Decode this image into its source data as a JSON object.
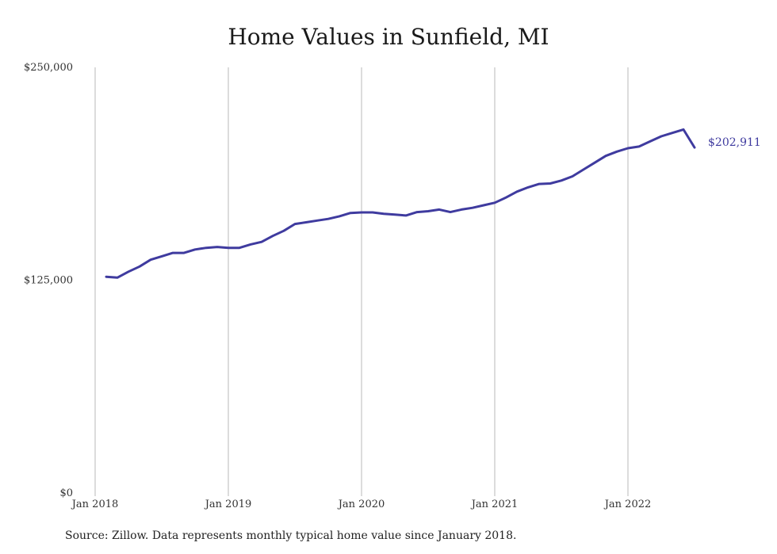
{
  "chart_data": {
    "type": "line",
    "title": "Home Values in Sunfield, MI",
    "source": "Source: Zillow. Data represents monthly typical home value since January 2018.",
    "xlabel": "",
    "ylabel": "",
    "ylim": [
      0,
      250000
    ],
    "y_ticks": [
      {
        "value": 0,
        "label": "$0"
      },
      {
        "value": 125000,
        "label": "$125,000"
      },
      {
        "value": 250000,
        "label": "$250,000"
      }
    ],
    "x_ticks": [
      {
        "value": "2018-01",
        "label": "Jan 2018"
      },
      {
        "value": "2019-01",
        "label": "Jan 2019"
      },
      {
        "value": "2020-01",
        "label": "Jan 2020"
      },
      {
        "value": "2021-01",
        "label": "Jan 2021"
      },
      {
        "value": "2022-01",
        "label": "Jan 2022"
      }
    ],
    "grid": "vertical",
    "line_color": "#3f3b9f",
    "end_label": "$202,911",
    "series": [
      {
        "x": [
          "2018-02",
          "2018-03",
          "2018-04",
          "2018-05",
          "2018-06",
          "2018-07",
          "2018-08",
          "2018-09",
          "2018-10",
          "2018-11",
          "2018-12",
          "2019-01",
          "2019-02",
          "2019-03",
          "2019-04",
          "2019-05",
          "2019-06",
          "2019-07",
          "2019-08",
          "2019-09",
          "2019-10",
          "2019-11",
          "2019-12",
          "2020-01",
          "2020-02",
          "2020-03",
          "2020-04",
          "2020-05",
          "2020-06",
          "2020-07",
          "2020-08",
          "2020-09",
          "2020-10",
          "2020-11",
          "2020-12",
          "2021-01",
          "2021-02",
          "2021-03",
          "2021-04",
          "2021-05",
          "2021-06",
          "2021-07",
          "2021-08",
          "2021-09",
          "2021-10",
          "2021-11",
          "2021-12",
          "2022-01",
          "2022-02",
          "2022-03",
          "2022-04",
          "2022-05",
          "2022-06",
          "2022-07"
        ],
        "values": [
          127000,
          126500,
          130000,
          133000,
          137000,
          139000,
          141000,
          141000,
          143000,
          144000,
          144500,
          144000,
          144000,
          146000,
          147500,
          151000,
          154000,
          158000,
          159000,
          160000,
          161000,
          162500,
          164500,
          164800,
          164800,
          164000,
          163500,
          163000,
          165000,
          165500,
          166500,
          165000,
          166500,
          167500,
          169000,
          170500,
          173500,
          177000,
          179500,
          181500,
          181800,
          183500,
          186000,
          190000,
          194000,
          198000,
          200500,
          202500,
          203500,
          206500,
          209500,
          211500,
          213500,
          202911
        ]
      }
    ]
  }
}
